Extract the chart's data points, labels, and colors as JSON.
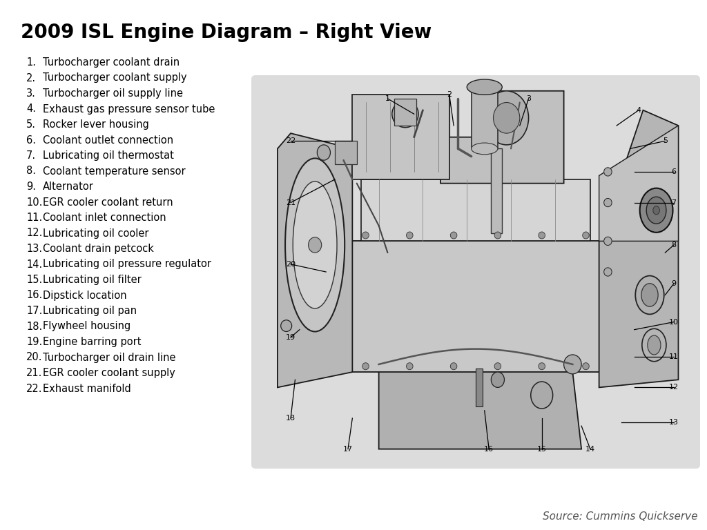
{
  "title": "2009 ISL Engine Diagram – Right View",
  "title_fontsize": 20,
  "title_fontweight": "bold",
  "source_text": "Source: Cummins Quickserve",
  "source_fontsize": 11,
  "source_style": "italic",
  "background_color": "#ffffff",
  "list_items": [
    "Turbocharger coolant drain",
    "Turbocharger coolant supply",
    "Turbocharger oil supply line",
    "Exhaust gas pressure sensor tube",
    "Rocker lever housing",
    "Coolant outlet connection",
    "Lubricating oil thermostat",
    "Coolant temperature sensor",
    "Alternator",
    "EGR cooler coolant return",
    "Coolant inlet connection",
    "Lubricating oil cooler",
    "Coolant drain petcock",
    "Lubricating oil pressure regulator",
    "Lubricating oil filter",
    "Dipstick location",
    "Lubricating oil pan",
    "Flywheel housing",
    "Engine barring port",
    "Turbocharger oil drain line",
    "EGR cooler coolant supply",
    "Exhaust manifold"
  ],
  "diagram_bg_color": "#e0e0e0"
}
